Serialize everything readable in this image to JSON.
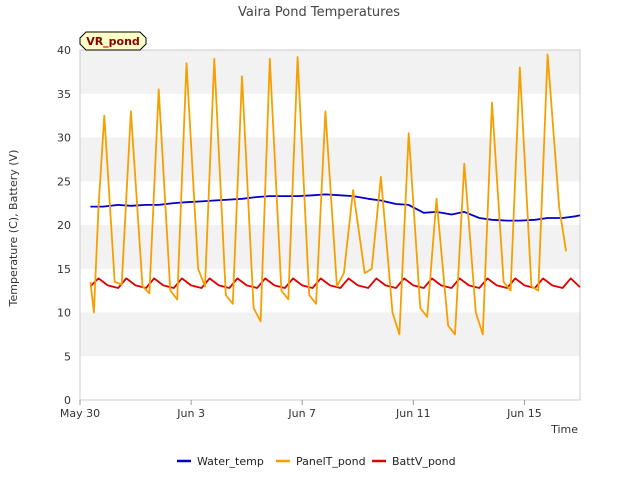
{
  "chart_data": {
    "type": "line",
    "title": "Vaira Pond Temperatures",
    "badge": "VR_pond",
    "xlabel": "Time",
    "ylabel": "Temperature (C), Battery (V)",
    "xlim": [
      "2022-05-30",
      "2022-06-17"
    ],
    "ylim": [
      0,
      40
    ],
    "yticks": [
      0,
      5,
      10,
      15,
      20,
      25,
      30,
      35,
      40
    ],
    "xticks": [
      {
        "date": "2022-05-30",
        "label": "May 30"
      },
      {
        "date": "2022-06-03",
        "label": "Jun 3"
      },
      {
        "date": "2022-06-07",
        "label": "Jun 7"
      },
      {
        "date": "2022-06-11",
        "label": "Jun 11"
      },
      {
        "date": "2022-06-15",
        "label": "Jun 15"
      }
    ],
    "grid": "horizontal bands",
    "legend_position": "bottom",
    "series": [
      {
        "name": "Water_temp",
        "color": "#0000cc",
        "points": [
          [
            "2022-05-30 09:00",
            22.1
          ],
          [
            "2022-05-30 20:00",
            22.1
          ],
          [
            "2022-05-31 09:00",
            22.3
          ],
          [
            "2022-05-31 20:00",
            22.2
          ],
          [
            "2022-06-01 09:00",
            22.3
          ],
          [
            "2022-06-01 20:00",
            22.3
          ],
          [
            "2022-06-02 09:00",
            22.5
          ],
          [
            "2022-06-02 20:00",
            22.6
          ],
          [
            "2022-06-03 09:00",
            22.7
          ],
          [
            "2022-06-03 20:00",
            22.8
          ],
          [
            "2022-06-04 09:00",
            22.9
          ],
          [
            "2022-06-04 20:00",
            23.0
          ],
          [
            "2022-06-05 09:00",
            23.2
          ],
          [
            "2022-06-05 20:00",
            23.3
          ],
          [
            "2022-06-06 09:00",
            23.3
          ],
          [
            "2022-06-06 20:00",
            23.3
          ],
          [
            "2022-06-07 09:00",
            23.4
          ],
          [
            "2022-06-07 20:00",
            23.5
          ],
          [
            "2022-06-08 09:00",
            23.4
          ],
          [
            "2022-06-08 20:00",
            23.3
          ],
          [
            "2022-06-09 09:00",
            23.0
          ],
          [
            "2022-06-09 20:00",
            22.8
          ],
          [
            "2022-06-10 09:00",
            22.4
          ],
          [
            "2022-06-10 20:00",
            22.3
          ],
          [
            "2022-06-11 09:00",
            21.4
          ],
          [
            "2022-06-11 20:00",
            21.5
          ],
          [
            "2022-06-12 09:00",
            21.2
          ],
          [
            "2022-06-12 20:00",
            21.5
          ],
          [
            "2022-06-13 09:00",
            20.8
          ],
          [
            "2022-06-13 20:00",
            20.6
          ],
          [
            "2022-06-14 09:00",
            20.5
          ],
          [
            "2022-06-14 20:00",
            20.5
          ],
          [
            "2022-06-15 09:00",
            20.6
          ],
          [
            "2022-06-15 20:00",
            20.8
          ],
          [
            "2022-06-16 09:00",
            20.8
          ],
          [
            "2022-06-16 20:00",
            21.0
          ],
          [
            "2022-06-17 00:00",
            21.1
          ]
        ]
      },
      {
        "name": "PanelT_pond",
        "color": "#f5a000",
        "points": [
          [
            "2022-05-30 09:00",
            13.5
          ],
          [
            "2022-05-30 12:00",
            10.0
          ],
          [
            "2022-05-30 16:00",
            22.0
          ],
          [
            "2022-05-30 21:00",
            32.5
          ],
          [
            "2022-05-31 06:00",
            13.5
          ],
          [
            "2022-05-31 12:00",
            13.2
          ],
          [
            "2022-05-31 20:00",
            33.0
          ],
          [
            "2022-06-01 06:00",
            13.0
          ],
          [
            "2022-06-01 12:00",
            12.2
          ],
          [
            "2022-06-01 20:00",
            35.5
          ],
          [
            "2022-06-02 06:00",
            12.5
          ],
          [
            "2022-06-02 12:00",
            11.5
          ],
          [
            "2022-06-02 20:00",
            38.5
          ],
          [
            "2022-06-03 06:00",
            15.0
          ],
          [
            "2022-06-03 12:00",
            13.0
          ],
          [
            "2022-06-03 20:00",
            39.0
          ],
          [
            "2022-06-04 06:00",
            12.0
          ],
          [
            "2022-06-04 12:00",
            11.0
          ],
          [
            "2022-06-04 20:00",
            37.0
          ],
          [
            "2022-06-05 06:00",
            10.5
          ],
          [
            "2022-06-05 12:00",
            9.0
          ],
          [
            "2022-06-05 20:00",
            39.0
          ],
          [
            "2022-06-06 06:00",
            12.5
          ],
          [
            "2022-06-06 12:00",
            11.5
          ],
          [
            "2022-06-06 20:00",
            39.2
          ],
          [
            "2022-06-07 06:00",
            12.0
          ],
          [
            "2022-06-07 12:00",
            11.0
          ],
          [
            "2022-06-07 20:00",
            33.0
          ],
          [
            "2022-06-08 06:00",
            13.0
          ],
          [
            "2022-06-08 12:00",
            14.5
          ],
          [
            "2022-06-08 20:00",
            24.0
          ],
          [
            "2022-06-09 06:00",
            14.5
          ],
          [
            "2022-06-09 12:00",
            15.0
          ],
          [
            "2022-06-09 20:00",
            25.5
          ],
          [
            "2022-06-10 06:00",
            10.0
          ],
          [
            "2022-06-10 12:00",
            7.5
          ],
          [
            "2022-06-10 20:00",
            30.5
          ],
          [
            "2022-06-11 06:00",
            10.5
          ],
          [
            "2022-06-11 12:00",
            9.5
          ],
          [
            "2022-06-11 20:00",
            23.0
          ],
          [
            "2022-06-12 06:00",
            8.5
          ],
          [
            "2022-06-12 12:00",
            7.5
          ],
          [
            "2022-06-12 20:00",
            27.0
          ],
          [
            "2022-06-13 06:00",
            10.0
          ],
          [
            "2022-06-13 12:00",
            7.5
          ],
          [
            "2022-06-13 20:00",
            34.0
          ],
          [
            "2022-06-14 06:00",
            13.5
          ],
          [
            "2022-06-14 12:00",
            12.5
          ],
          [
            "2022-06-14 20:00",
            38.0
          ],
          [
            "2022-06-15 06:00",
            13.0
          ],
          [
            "2022-06-15 12:00",
            12.5
          ],
          [
            "2022-06-15 20:00",
            39.5
          ],
          [
            "2022-06-16 06:00",
            22.0
          ],
          [
            "2022-06-16 12:00",
            17.0
          ]
        ]
      },
      {
        "name": "BattV_pond",
        "color": "#e00000",
        "points": [
          [
            "2022-05-30 09:00",
            13.0
          ],
          [
            "2022-05-30 16:00",
            13.9
          ],
          [
            "2022-05-31 00:00",
            13.1
          ],
          [
            "2022-05-31 09:00",
            12.8
          ],
          [
            "2022-05-31 16:00",
            13.9
          ],
          [
            "2022-06-01 00:00",
            13.1
          ],
          [
            "2022-06-01 09:00",
            12.8
          ],
          [
            "2022-06-01 16:00",
            13.9
          ],
          [
            "2022-06-02 00:00",
            13.1
          ],
          [
            "2022-06-02 09:00",
            12.8
          ],
          [
            "2022-06-02 16:00",
            13.9
          ],
          [
            "2022-06-03 00:00",
            13.1
          ],
          [
            "2022-06-03 09:00",
            12.8
          ],
          [
            "2022-06-03 16:00",
            13.9
          ],
          [
            "2022-06-04 00:00",
            13.1
          ],
          [
            "2022-06-04 09:00",
            12.8
          ],
          [
            "2022-06-04 16:00",
            13.9
          ],
          [
            "2022-06-05 00:00",
            13.1
          ],
          [
            "2022-06-05 09:00",
            12.8
          ],
          [
            "2022-06-05 16:00",
            13.9
          ],
          [
            "2022-06-06 00:00",
            13.1
          ],
          [
            "2022-06-06 09:00",
            12.8
          ],
          [
            "2022-06-06 16:00",
            13.9
          ],
          [
            "2022-06-07 00:00",
            13.1
          ],
          [
            "2022-06-07 09:00",
            12.8
          ],
          [
            "2022-06-07 16:00",
            13.9
          ],
          [
            "2022-06-08 00:00",
            13.1
          ],
          [
            "2022-06-08 09:00",
            12.8
          ],
          [
            "2022-06-08 16:00",
            13.9
          ],
          [
            "2022-06-09 00:00",
            13.1
          ],
          [
            "2022-06-09 09:00",
            12.8
          ],
          [
            "2022-06-09 16:00",
            13.9
          ],
          [
            "2022-06-10 00:00",
            13.1
          ],
          [
            "2022-06-10 09:00",
            12.8
          ],
          [
            "2022-06-10 16:00",
            13.9
          ],
          [
            "2022-06-11 00:00",
            13.1
          ],
          [
            "2022-06-11 09:00",
            12.8
          ],
          [
            "2022-06-11 16:00",
            13.9
          ],
          [
            "2022-06-12 00:00",
            13.1
          ],
          [
            "2022-06-12 09:00",
            12.8
          ],
          [
            "2022-06-12 16:00",
            13.9
          ],
          [
            "2022-06-13 00:00",
            13.1
          ],
          [
            "2022-06-13 09:00",
            12.8
          ],
          [
            "2022-06-13 16:00",
            13.9
          ],
          [
            "2022-06-14 00:00",
            13.1
          ],
          [
            "2022-06-14 09:00",
            12.8
          ],
          [
            "2022-06-14 16:00",
            13.9
          ],
          [
            "2022-06-15 00:00",
            13.1
          ],
          [
            "2022-06-15 09:00",
            12.8
          ],
          [
            "2022-06-15 16:00",
            13.9
          ],
          [
            "2022-06-16 00:00",
            13.1
          ],
          [
            "2022-06-16 09:00",
            12.8
          ],
          [
            "2022-06-16 16:00",
            13.9
          ],
          [
            "2022-06-17 00:00",
            12.9
          ]
        ]
      }
    ]
  }
}
